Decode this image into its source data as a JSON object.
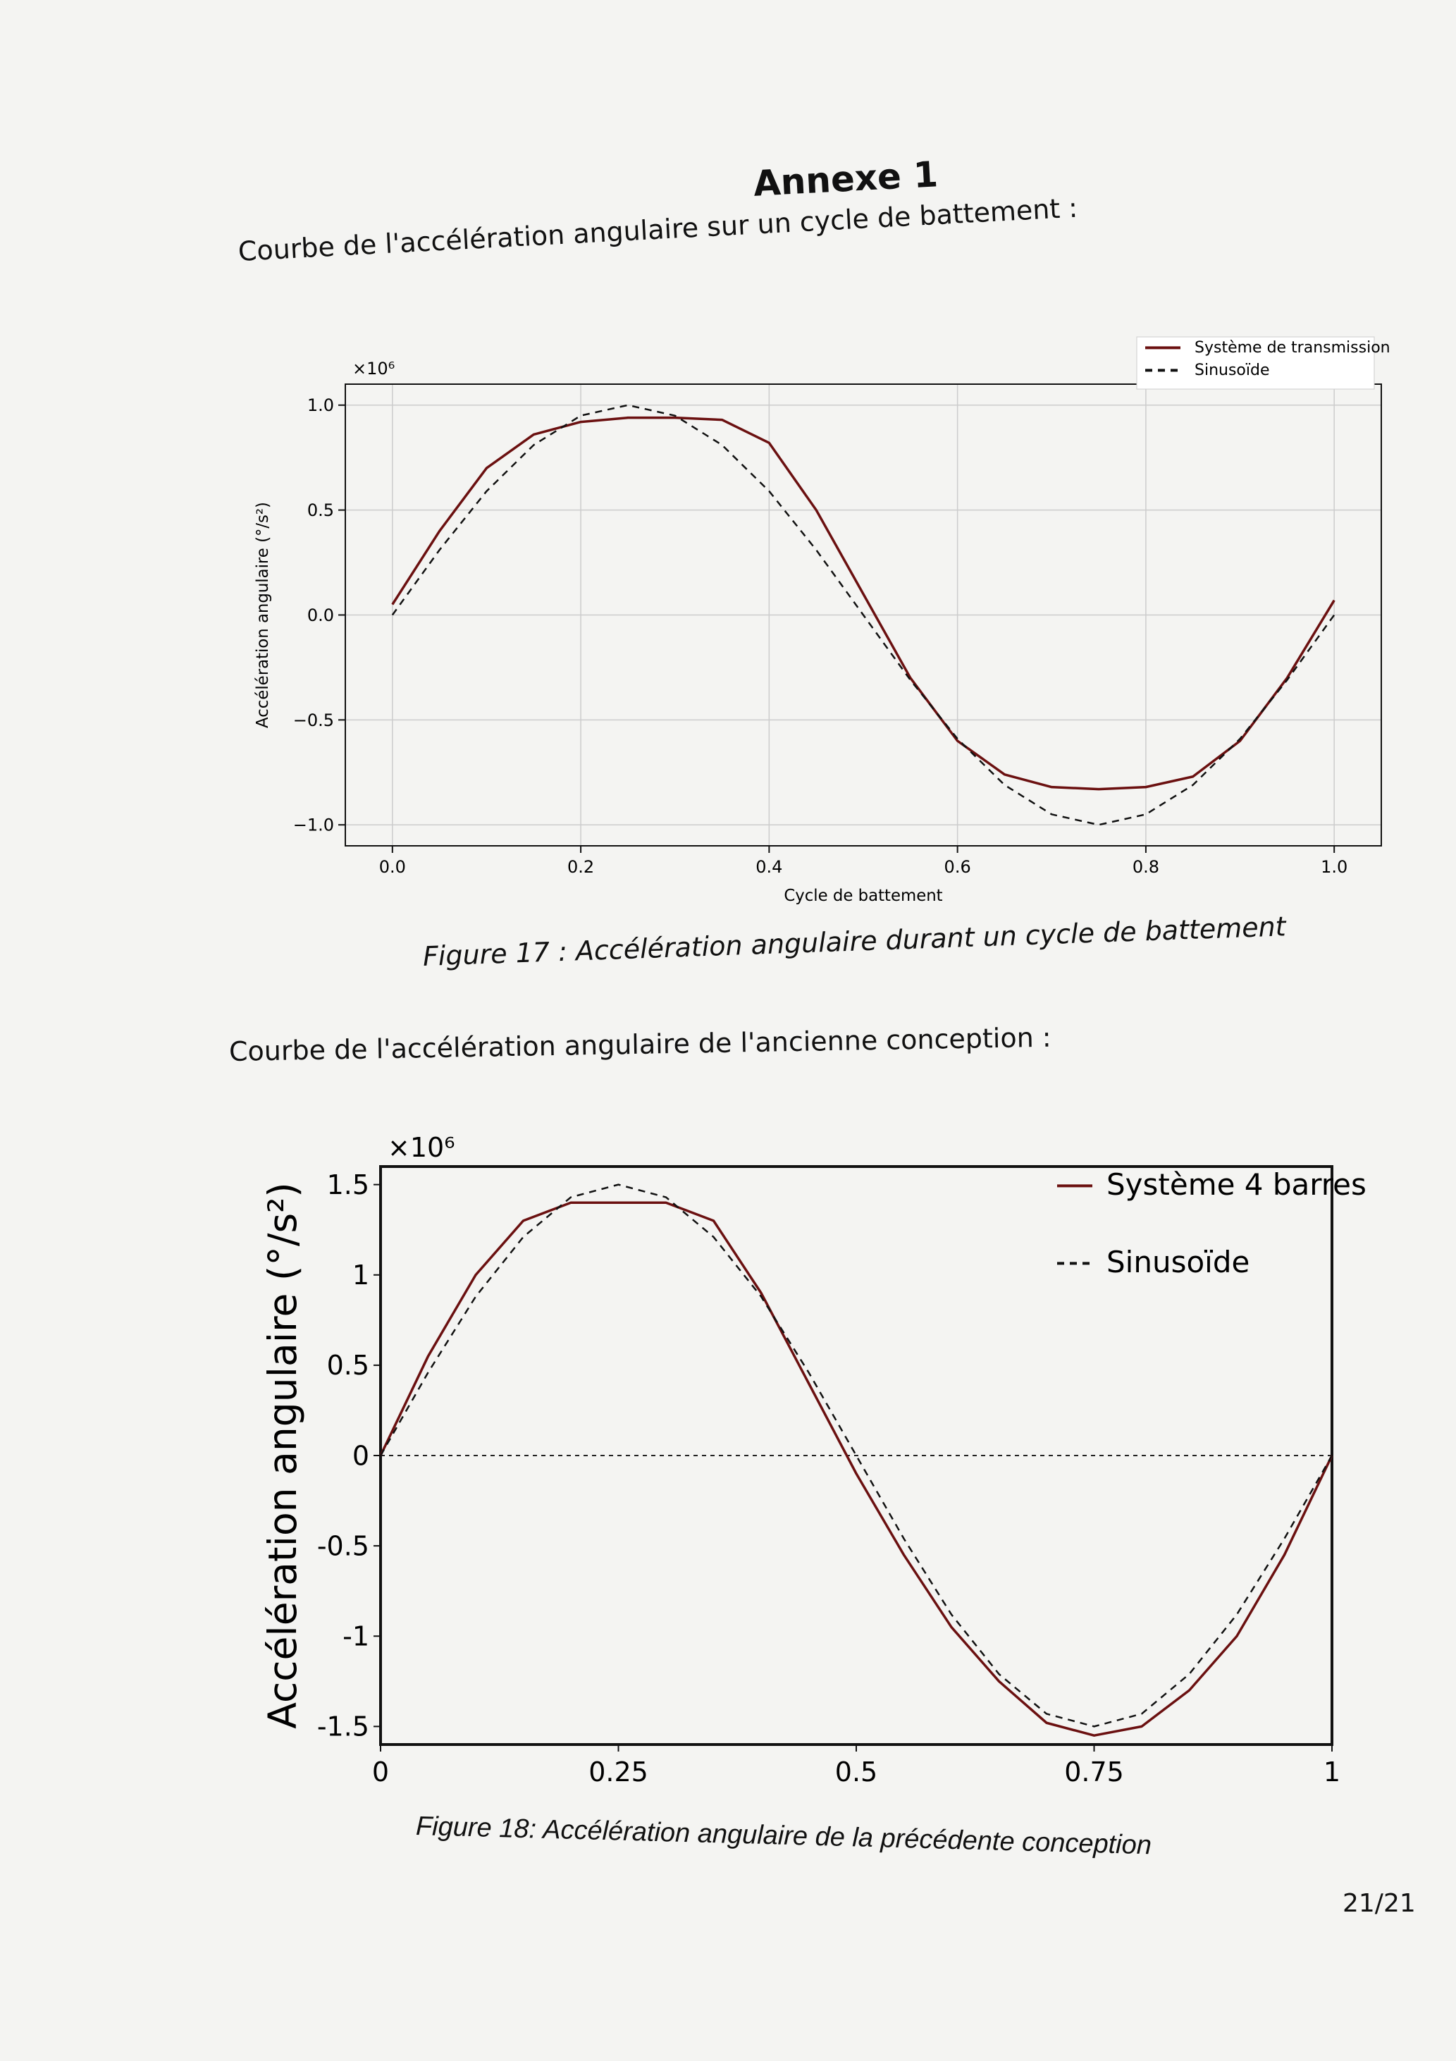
{
  "page": {
    "title": "Annexe 1",
    "section1": "Courbe de l'accélération angulaire sur un cycle de battement :",
    "caption1": "Figure 17 : Accélération angulaire durant un cycle de battement",
    "section2": "Courbe de l'accélération angulaire de l'ancienne conception :",
    "caption2": "Figure 18: Accélération angulaire de la précédente conception",
    "page_number": "21/21"
  },
  "chart_data": [
    {
      "type": "line",
      "xlabel": "Cycle de battement",
      "ylabel": "Accélération angulaire (°/s²)",
      "multiplier": "×10⁶",
      "xlim": [
        -0.05,
        1.05
      ],
      "ylim": [
        -1.1,
        1.1
      ],
      "xticks": [
        "0.0",
        "0.2",
        "0.4",
        "0.6",
        "0.8",
        "1.0"
      ],
      "yticks": [
        "1.0",
        "0.5",
        "0.0",
        "−0.5",
        "−1.0"
      ],
      "grid": true,
      "legend": "top-right",
      "x": [
        0,
        0.05,
        0.1,
        0.15,
        0.2,
        0.25,
        0.3,
        0.35,
        0.4,
        0.45,
        0.5,
        0.55,
        0.6,
        0.65,
        0.7,
        0.75,
        0.8,
        0.85,
        0.9,
        0.95,
        1.0
      ],
      "series": [
        {
          "name": "Système de transmission",
          "style": "solid",
          "color": "#6b1010",
          "values": [
            0.05,
            0.4,
            0.7,
            0.86,
            0.92,
            0.94,
            0.94,
            0.93,
            0.82,
            0.5,
            0.1,
            -0.3,
            -0.6,
            -0.76,
            -0.82,
            -0.83,
            -0.82,
            -0.77,
            -0.6,
            -0.3,
            0.07
          ]
        },
        {
          "name": "Sinusoïde",
          "style": "dashed",
          "color": "#111111",
          "values": [
            0,
            0.31,
            0.59,
            0.81,
            0.95,
            1.0,
            0.95,
            0.81,
            0.59,
            0.31,
            0,
            -0.31,
            -0.59,
            -0.81,
            -0.95,
            -1.0,
            -0.95,
            -0.81,
            -0.59,
            -0.31,
            0
          ]
        }
      ]
    },
    {
      "type": "line",
      "xlabel": "",
      "ylabel": "Accélération angulaire (°/s²)",
      "multiplier": "×10⁶",
      "xlim": [
        0,
        1
      ],
      "ylim": [
        -1.6,
        1.6
      ],
      "xticks": [
        "0",
        "0.25",
        "0.5",
        "0.75",
        "1"
      ],
      "yticks": [
        "1.5",
        "1",
        "0.5",
        "0",
        "-0.5",
        "-1",
        "-1.5"
      ],
      "grid": false,
      "legend": "top-right",
      "x": [
        0,
        0.05,
        0.1,
        0.15,
        0.2,
        0.25,
        0.3,
        0.35,
        0.4,
        0.45,
        0.5,
        0.55,
        0.6,
        0.65,
        0.7,
        0.75,
        0.8,
        0.85,
        0.9,
        0.95,
        1.0
      ],
      "series": [
        {
          "name": "Système 4 barres",
          "style": "solid",
          "color": "#6b1010",
          "values": [
            0,
            0.55,
            1.0,
            1.3,
            1.4,
            1.4,
            1.4,
            1.3,
            0.9,
            0.4,
            -0.1,
            -0.55,
            -0.95,
            -1.25,
            -1.48,
            -1.55,
            -1.5,
            -1.3,
            -1.0,
            -0.55,
            0
          ]
        },
        {
          "name": "Sinusoïde",
          "style": "dashed",
          "color": "#111111",
          "values": [
            0,
            0.46,
            0.88,
            1.21,
            1.43,
            1.5,
            1.43,
            1.21,
            0.88,
            0.46,
            0,
            -0.46,
            -0.88,
            -1.21,
            -1.43,
            -1.5,
            -1.43,
            -1.21,
            -0.88,
            -0.46,
            0
          ]
        }
      ]
    }
  ]
}
